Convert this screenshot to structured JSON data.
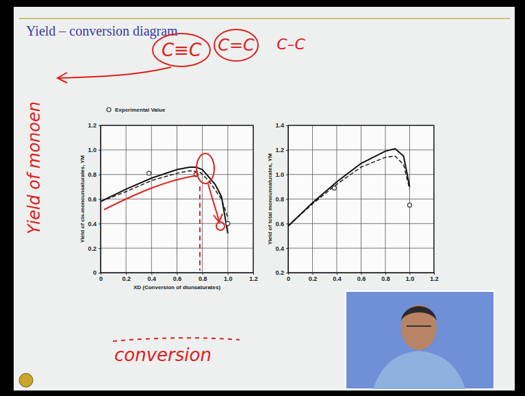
{
  "slide": {
    "title": "Yield – conversion diagram"
  },
  "annotations": [
    "C≡C",
    "C=C",
    "C–C",
    "Yield of monoen",
    "conversion"
  ],
  "chart_data": [
    {
      "type": "line",
      "grid": true,
      "legend": "top-left",
      "xlabel": "XD (Conversion of diunsaturates)",
      "ylabel": "Yield of cis-monounsaturates, YM",
      "xlim": [
        0,
        1.2
      ],
      "ylim": [
        0,
        1.2
      ],
      "xticks": [
        0,
        0.2,
        0.4,
        0.6,
        0.8,
        {
          "value": 1,
          "label": "1.0"
        },
        1.2
      ],
      "yticks": [
        0,
        0.2,
        0.4,
        0.6,
        0.8,
        {
          "value": 1,
          "label": "1.0"
        },
        1.2
      ],
      "series": [
        {
          "line_style": "solid",
          "color": "#111111",
          "x": [
            0,
            0.2,
            0.4,
            0.6,
            0.7,
            0.75,
            0.8,
            0.9,
            0.95,
            1.0
          ],
          "values": [
            0.58,
            0.68,
            0.77,
            0.84,
            0.86,
            0.86,
            0.84,
            0.72,
            0.62,
            0.32
          ]
        },
        {
          "line_style": "dashed",
          "color": "#111111",
          "x": [
            0,
            0.2,
            0.4,
            0.6,
            0.7,
            0.78,
            0.85,
            0.95,
            1.0
          ],
          "values": [
            0.58,
            0.66,
            0.75,
            0.81,
            0.83,
            0.82,
            0.75,
            0.6,
            0.45
          ]
        },
        {
          "name": "Experimental Value",
          "type": "scatter",
          "marker": "circle",
          "color": "#333333",
          "x": [
            0.38,
            0.75,
            1.0
          ],
          "values": [
            0.81,
            0.8,
            0.4
          ]
        }
      ]
    },
    {
      "type": "line",
      "grid": true,
      "ylabel": "Yield of total monounsaturates, YM",
      "xlim": [
        0,
        1.2
      ],
      "ylim": [
        0.2,
        1.4
      ],
      "xticks": [
        0,
        0.2,
        0.4,
        0.6,
        0.8,
        {
          "value": 1,
          "label": "1.0"
        },
        1.2
      ],
      "yticks": [
        0.2,
        0.4,
        0.6,
        0.8,
        {
          "value": 1,
          "label": "1.0"
        },
        1.2,
        1.4
      ],
      "series": [
        {
          "line_style": "solid",
          "color": "#111111",
          "x": [
            0,
            0.2,
            0.4,
            0.6,
            0.8,
            0.88,
            0.95,
            1.0
          ],
          "values": [
            0.58,
            0.77,
            0.94,
            1.09,
            1.19,
            1.21,
            1.15,
            0.9
          ]
        },
        {
          "line_style": "dashed",
          "color": "#111111",
          "x": [
            0,
            0.2,
            0.4,
            0.6,
            0.8,
            0.88,
            0.95,
            1.0
          ],
          "values": [
            0.58,
            0.76,
            0.92,
            1.06,
            1.14,
            1.15,
            1.08,
            0.88
          ]
        },
        {
          "type": "scatter",
          "marker": "circle",
          "color": "#333333",
          "x": [
            0.38,
            1.0
          ],
          "values": [
            0.89,
            0.75
          ]
        }
      ]
    }
  ]
}
